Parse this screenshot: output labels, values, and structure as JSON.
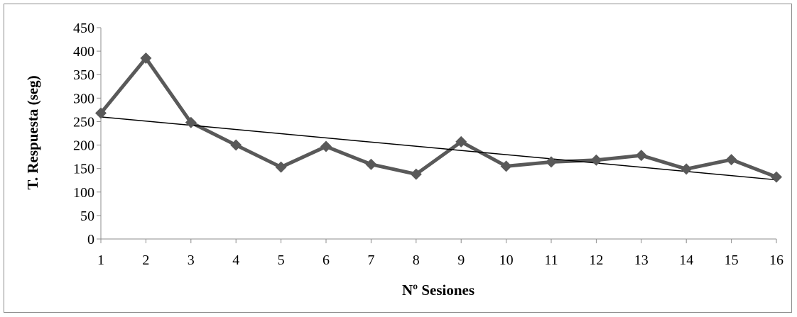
{
  "chart_data": {
    "type": "line",
    "title": "",
    "xlabel": "Nº Sesiones",
    "ylabel": "T. Respuesta (seg)",
    "x": [
      1,
      2,
      3,
      4,
      5,
      6,
      7,
      8,
      9,
      10,
      11,
      12,
      13,
      14,
      15,
      16
    ],
    "ylim": [
      0,
      450
    ],
    "yticks": [
      0,
      50,
      100,
      150,
      200,
      250,
      300,
      350,
      400,
      450
    ],
    "grid": false,
    "legend": "none",
    "series": [
      {
        "values": [
          268,
          385,
          248,
          200,
          153,
          197,
          159,
          138,
          207,
          155,
          164,
          168,
          178,
          149,
          169,
          132
        ],
        "color": "#595959",
        "marker": "diamond"
      }
    ],
    "trendline": {
      "type": "linear",
      "color": "#000000",
      "start_value": 260,
      "end_value": 126
    }
  }
}
